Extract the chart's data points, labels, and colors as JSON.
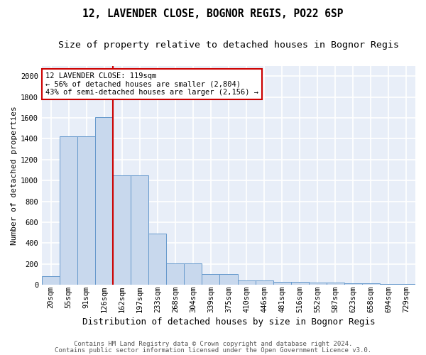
{
  "title": "12, LAVENDER CLOSE, BOGNOR REGIS, PO22 6SP",
  "subtitle": "Size of property relative to detached houses in Bognor Regis",
  "xlabel": "Distribution of detached houses by size in Bognor Regis",
  "ylabel": "Number of detached properties",
  "bin_labels": [
    "20sqm",
    "55sqm",
    "91sqm",
    "126sqm",
    "162sqm",
    "197sqm",
    "233sqm",
    "268sqm",
    "304sqm",
    "339sqm",
    "375sqm",
    "410sqm",
    "446sqm",
    "481sqm",
    "516sqm",
    "552sqm",
    "587sqm",
    "623sqm",
    "658sqm",
    "694sqm",
    "729sqm"
  ],
  "bar_heights": [
    80,
    1420,
    1420,
    1610,
    1050,
    1050,
    490,
    205,
    205,
    105,
    105,
    40,
    40,
    25,
    25,
    20,
    20,
    15,
    15,
    5,
    5
  ],
  "bar_color": "#c8d8ed",
  "bar_edgecolor": "#6699cc",
  "background_color": "#e8eef8",
  "grid_color": "#ffffff",
  "fig_background": "#ffffff",
  "vline_x": 3.5,
  "vline_color": "#cc0000",
  "annotation_text": "12 LAVENDER CLOSE: 119sqm\n← 56% of detached houses are smaller (2,804)\n43% of semi-detached houses are larger (2,156) →",
  "annotation_box_facecolor": "#ffffff",
  "annotation_box_edgecolor": "#cc0000",
  "ylim": [
    0,
    2100
  ],
  "yticks": [
    0,
    200,
    400,
    600,
    800,
    1000,
    1200,
    1400,
    1600,
    1800,
    2000
  ],
  "footer1": "Contains HM Land Registry data © Crown copyright and database right 2024.",
  "footer2": "Contains public sector information licensed under the Open Government Licence v3.0.",
  "title_fontsize": 10.5,
  "subtitle_fontsize": 9.5,
  "ylabel_fontsize": 8,
  "xlabel_fontsize": 9,
  "tick_fontsize": 7.5,
  "annotation_fontsize": 7.5,
  "footer_fontsize": 6.5
}
